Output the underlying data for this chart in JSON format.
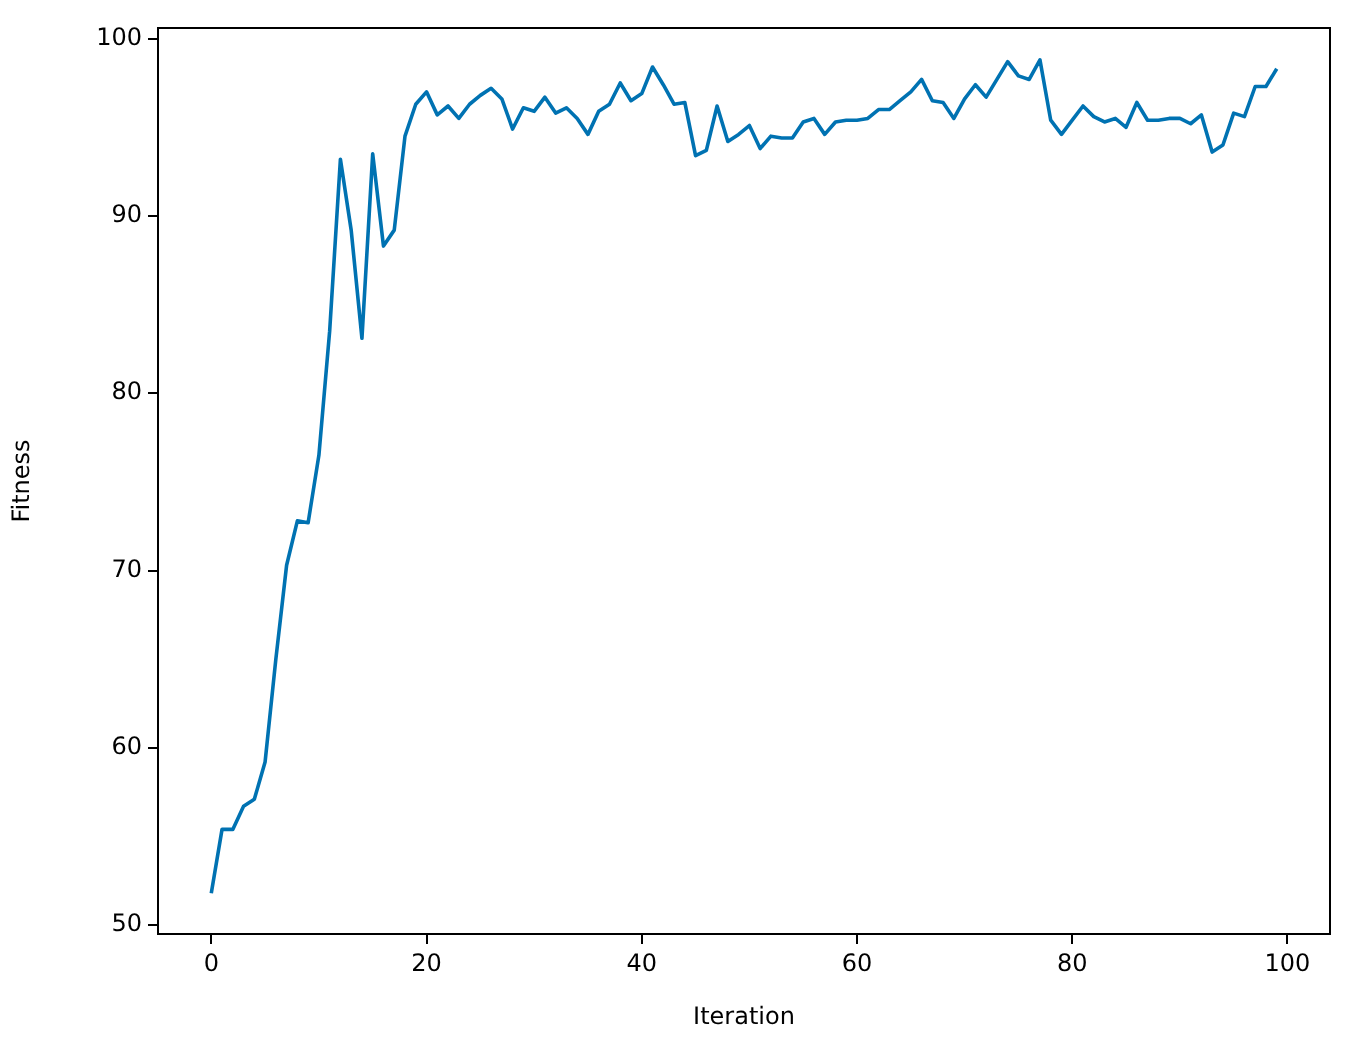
{
  "chart_data": {
    "type": "line",
    "xlabel": "Iteration",
    "ylabel": "Fitness",
    "x": [
      0,
      1,
      2,
      3,
      4,
      5,
      6,
      7,
      8,
      9,
      10,
      11,
      12,
      13,
      14,
      15,
      16,
      17,
      18,
      19,
      20,
      21,
      22,
      23,
      24,
      25,
      26,
      27,
      28,
      29,
      30,
      31,
      32,
      33,
      34,
      35,
      36,
      37,
      38,
      39,
      40,
      41,
      42,
      43,
      44,
      45,
      46,
      47,
      48,
      49,
      50,
      51,
      52,
      53,
      54,
      55,
      56,
      57,
      58,
      59,
      60,
      61,
      62,
      63,
      64,
      65,
      66,
      67,
      68,
      69,
      70,
      71,
      72,
      73,
      74,
      75,
      76,
      77,
      78,
      79,
      80,
      81,
      82,
      83,
      84,
      85,
      86,
      87,
      88,
      89,
      90,
      91,
      92,
      93,
      94,
      95,
      96,
      97,
      98,
      99
    ],
    "series": [
      {
        "color": "#0072b2",
        "values": [
          51.8,
          55.4,
          55.4,
          56.7,
          57.1,
          59.2,
          65,
          70.3,
          72.8,
          72.7,
          76.5,
          83.5,
          93.2,
          89.2,
          83.1,
          93.5,
          88.3,
          89.2,
          94.5,
          96.3,
          97.0,
          95.7,
          96.2,
          95.5,
          96.3,
          96.8,
          97.2,
          96.6,
          94.9,
          96.1,
          95.9,
          96.7,
          95.8,
          96.1,
          95.5,
          94.6,
          95.9,
          96.3,
          97.5,
          96.5,
          96.9,
          98.4,
          97.4,
          96.3,
          96.4,
          93.4,
          93.7,
          96.2,
          94.2,
          94.6,
          95.1,
          93.8,
          94.5,
          94.4,
          94.4,
          95.3,
          95.5,
          94.6,
          95.3,
          95.4,
          95.4,
          95.5,
          96.0,
          96.0,
          96.5,
          97.0,
          97.7,
          96.5,
          96.4,
          95.5,
          96.6,
          97.4,
          96.7,
          97.7,
          98.7,
          97.9,
          97.7,
          98.8,
          95.4,
          94.6,
          95.4,
          96.2,
          95.6,
          95.3,
          95.5,
          95.0,
          96.4,
          95.4,
          95.4,
          95.5,
          95.5,
          95.2,
          95.7,
          93.6,
          94.0,
          95.8,
          95.6,
          97.3,
          97.3,
          98.3
        ]
      }
    ],
    "xlim": [
      -4.95,
      103.95
    ],
    "xticks": [
      0,
      20,
      40,
      60,
      80,
      100
    ],
    "ylim": [
      49.5,
      100.6
    ],
    "yticks": [
      50,
      60,
      70,
      80,
      90,
      100
    ],
    "grid": false,
    "legend": false,
    "marker": "none",
    "line_style": "solid"
  }
}
